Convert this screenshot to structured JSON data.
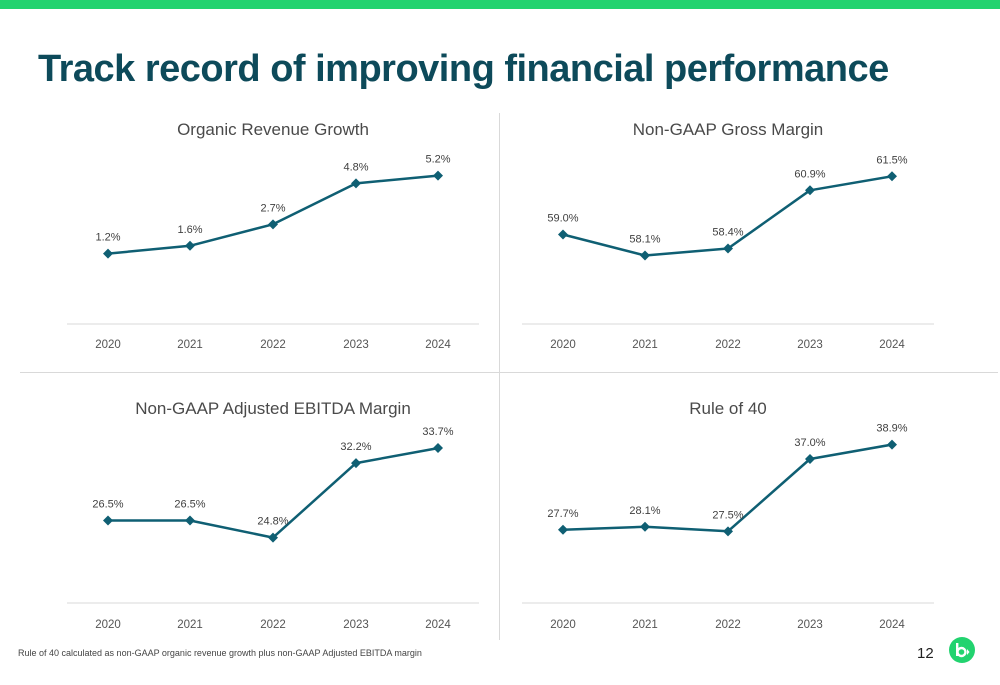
{
  "page": {
    "title": "Track record of improving financial performance",
    "footnote": "Rule of 40 calculated as non-GAAP organic revenue growth plus non-GAAP Adjusted EBITDA margin",
    "page_number": "12",
    "accent_color": "#22d36f",
    "title_color": "#0d4a5a",
    "series_color": "#0f5f73",
    "logo_icon": "b-logo-icon"
  },
  "chart_data": [
    {
      "type": "line",
      "title": "Organic Revenue Growth",
      "x": [
        "2020",
        "2021",
        "2022",
        "2023",
        "2024"
      ],
      "values": [
        1.2,
        1.6,
        2.7,
        4.8,
        5.2
      ],
      "labels": [
        "1.2%",
        "1.6%",
        "2.7%",
        "4.8%",
        "5.2%"
      ],
      "unit": "%",
      "ylim": [
        -2,
        6
      ],
      "grid": false,
      "marker": "diamond"
    },
    {
      "type": "line",
      "title": "Non-GAAP Gross Margin",
      "x": [
        "2020",
        "2021",
        "2022",
        "2023",
        "2024"
      ],
      "values": [
        59.0,
        58.1,
        58.4,
        60.9,
        61.5
      ],
      "labels": [
        "59.0%",
        "58.1%",
        "58.4%",
        "60.9%",
        "61.5%"
      ],
      "unit": "%",
      "ylim": [
        55.5,
        62.2
      ],
      "grid": false,
      "marker": "diamond"
    },
    {
      "type": "line",
      "title": "Non-GAAP Adjusted EBITDA Margin",
      "x": [
        "2020",
        "2021",
        "2022",
        "2023",
        "2024"
      ],
      "values": [
        26.5,
        26.5,
        24.8,
        32.2,
        33.7
      ],
      "labels": [
        "26.5%",
        "26.5%",
        "24.8%",
        "32.2%",
        "33.7%"
      ],
      "unit": "%",
      "ylim": [
        19,
        34.5
      ],
      "grid": false,
      "marker": "diamond"
    },
    {
      "type": "line",
      "title": "Rule of 40",
      "x": [
        "2020",
        "2021",
        "2022",
        "2023",
        "2024"
      ],
      "values": [
        27.7,
        28.1,
        27.5,
        37.0,
        38.9
      ],
      "labels": [
        "27.7%",
        "28.1%",
        "27.5%",
        "37.0%",
        "38.9%"
      ],
      "unit": "%",
      "ylim": [
        19,
        39.5
      ],
      "grid": false,
      "marker": "diamond"
    }
  ]
}
